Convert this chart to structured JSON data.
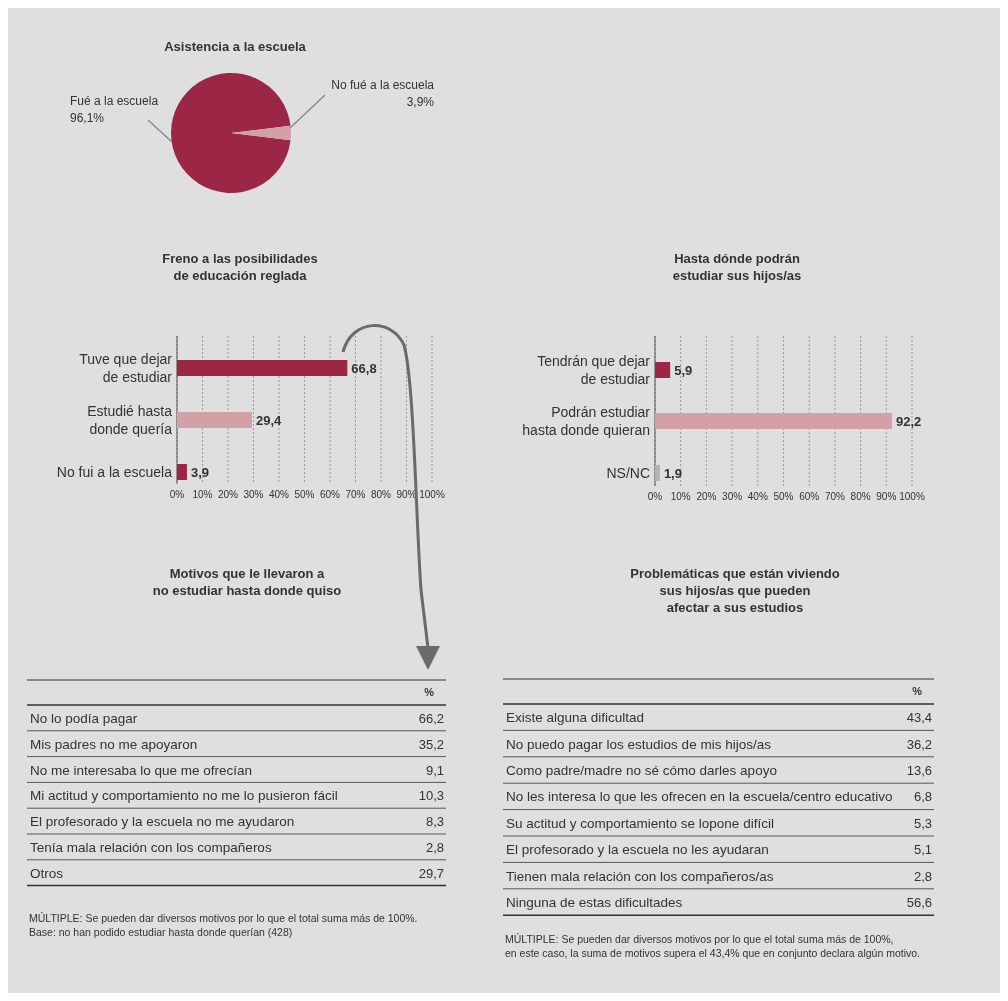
{
  "chart_data": [
    {
      "type": "pie",
      "title": "Asistencia a la escuela",
      "categories": [
        "Fué a la escuela",
        "No fué a la escuela"
      ],
      "values": [
        96.1,
        3.9
      ],
      "value_labels": [
        "96,1%",
        "3,9%"
      ],
      "colors": [
        "#9c2645",
        "#d4a0a8"
      ]
    },
    {
      "type": "bar",
      "orientation": "horizontal",
      "title": "Freno a las posibilidades\nde educación reglada",
      "categories": [
        "Tuve que dejar\nde estudiar",
        "Estudié hasta\ndonde quería",
        "No fui a la escuela"
      ],
      "values": [
        66.8,
        29.4,
        3.9
      ],
      "value_labels": [
        "66,8",
        "29,4",
        "3,9"
      ],
      "colors": [
        "#9c2645",
        "#d4a0a8",
        "#9c2645"
      ],
      "xlim": [
        0,
        100
      ],
      "xticks": [
        {
          "value": 0,
          "label": "0%"
        },
        {
          "value": 10,
          "label": "10%"
        },
        {
          "value": 20,
          "label": "20%"
        },
        {
          "value": 30,
          "label": "30%"
        },
        {
          "value": 40,
          "label": "40%"
        },
        {
          "value": 50,
          "label": "50%"
        },
        {
          "value": 60,
          "label": "60%"
        },
        {
          "value": 70,
          "label": "70%"
        },
        {
          "value": 80,
          "label": "80%"
        },
        {
          "value": 90,
          "label": "90%"
        },
        {
          "value": 100,
          "label": "100%"
        }
      ],
      "grid": "x"
    },
    {
      "type": "bar",
      "orientation": "horizontal",
      "title": "Hasta dónde podrán\nestudiar sus hijos/as",
      "categories": [
        "Tendrán que dejar\nde estudiar",
        "Podrán estudiar\nhasta donde quieran",
        "NS/NC"
      ],
      "values": [
        5.9,
        92.2,
        1.9
      ],
      "value_labels": [
        "5,9",
        "92,2",
        "1,9"
      ],
      "colors": [
        "#9c2645",
        "#d4a0a8",
        "#b3b3b3"
      ],
      "xlim": [
        0,
        100
      ],
      "xticks": [
        {
          "value": 0,
          "label": "0%"
        },
        {
          "value": 10,
          "label": "10%"
        },
        {
          "value": 20,
          "label": "20%"
        },
        {
          "value": 30,
          "label": "30%"
        },
        {
          "value": 40,
          "label": "40%"
        },
        {
          "value": 50,
          "label": "50%"
        },
        {
          "value": 60,
          "label": "60%"
        },
        {
          "value": 70,
          "label": "70%"
        },
        {
          "value": 80,
          "label": "80%"
        },
        {
          "value": 90,
          "label": "90%"
        },
        {
          "value": 100,
          "label": "100%"
        }
      ],
      "grid": "x"
    },
    {
      "type": "other",
      "title": "Motivos que le llevaron a\nno estudiar hasta donde quiso",
      "ylabel": "%",
      "categories": [
        "No lo podía pagar",
        "Mis padres no me apoyaron",
        "No me interesaba lo que me ofrecían",
        "Mi actitud y comportamiento no me lo pusieron fácil",
        "El profesorado y la escuela no me ayudaron",
        "Tenía mala relación con los compañeros",
        "Otros"
      ],
      "value_labels": [
        "66,2",
        "35,2",
        "9,1",
        "10,3",
        "8,3",
        "2,8",
        "29,7"
      ],
      "annotations": [
        "MÚLTIPLE: Se pueden dar diversos motivos por lo que el total suma más de 100%.",
        "Base: no han podido estudiar hasta donde querían (428)"
      ]
    },
    {
      "type": "other",
      "title": "Problemáticas que están viviendo\nsus hijos/as que pueden\nafectar a sus estudios",
      "ylabel": "%",
      "categories": [
        "Existe alguna dificultad",
        "No puedo pagar los estudios de mis hijos/as",
        "Como padre/madre no sé cómo darles apoyo",
        "No les interesa lo que les ofrecen en la escuela/centro educativo",
        "Su actitud y comportamiento se lopone difícil",
        "El profesorado y la escuela no les ayudaran",
        "Tienen mala relación con los compañeros/as",
        "Ninguna de estas dificultades"
      ],
      "value_labels": [
        "43,4",
        "36,2",
        "13,6",
        "6,8",
        "5,3",
        "5,1",
        "2,8",
        "56,6"
      ],
      "annotations": [
        "MÚLTIPLE: Se pueden dar diversos motivos por lo que el total suma más de 100%,",
        "en este caso, la suma de motivos supera el 43,4% que en conjunto declara algún motivo."
      ]
    }
  ]
}
